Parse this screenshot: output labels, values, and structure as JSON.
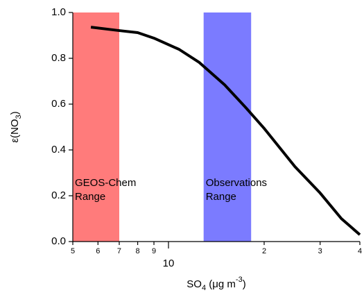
{
  "chart_data": {
    "type": "line",
    "x_label": {
      "text": "SO",
      "sub": "4",
      "mid": " (μg m",
      "sup": "-3",
      "end": ")"
    },
    "y_label": {
      "text": "ε(NO",
      "sub": "3",
      "end": ")"
    },
    "x_scale": "log",
    "xlim": [
      5,
      40
    ],
    "ylim": [
      0,
      1
    ],
    "xticks": [
      10
    ],
    "xticks_minor": [
      5,
      6,
      7,
      8,
      9,
      {
        "value": 20,
        "label": "2"
      },
      {
        "value": 30,
        "label": "3"
      },
      {
        "value": 40,
        "label": "4"
      }
    ],
    "yticks": [
      {
        "value": 0,
        "label": "0.0"
      },
      0.2,
      0.4,
      0.6,
      0.8,
      {
        "value": 1,
        "label": "1.0"
      }
    ],
    "ranges": [
      {
        "lines": [
          "GEOS-Chem",
          "Range"
        ],
        "xlim": [
          5,
          7
        ],
        "color": "#ff7b7b"
      },
      {
        "lines": [
          "Observations",
          "Range"
        ],
        "xlim": [
          12.9,
          18.2
        ],
        "color": "#7b7bff"
      }
    ],
    "series": [
      {
        "color": "#000000",
        "x": [
          5.7,
          7,
          8,
          9,
          10.8,
          12.5,
          15,
          17.5,
          20,
          25,
          30,
          35,
          40
        ],
        "values": [
          0.936,
          0.921,
          0.912,
          0.888,
          0.839,
          0.782,
          0.685,
          0.585,
          0.494,
          0.327,
          0.212,
          0.1,
          0.03
        ]
      }
    ]
  }
}
